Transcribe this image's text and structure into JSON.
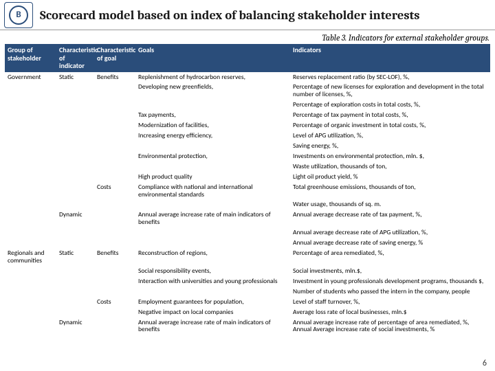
{
  "title": "Scorecard model based on index of balancing stakeholder interests",
  "caption": "Table 3. Indicators for external stakeholder groups.",
  "logo_letter": "B",
  "page_number": "6",
  "colors": {
    "header_bg": "#2a4d7a",
    "header_fg": "#ffffff",
    "border": "#999999",
    "text": "#000000"
  },
  "columns": [
    "Group of stakeholder",
    "Characteristic of indicator",
    "Characteristic of goal",
    "Goals",
    "Indicators"
  ],
  "rows": [
    {
      "c0": "Government",
      "c1": "Static",
      "c2": "Benefits",
      "c3": "Replenishment of hydrocarbon reserves,",
      "c4": "Reserves replacement ratio (by SEC-LOF), %,"
    },
    {
      "c0": "",
      "c1": "",
      "c2": "",
      "c3": "Developing new greenfields,",
      "c4": "Percentage of new licenses for exploration and development in the total number of licenses, %,"
    },
    {
      "c0": "",
      "c1": "",
      "c2": "",
      "c3": "",
      "c4": "Percentage of exploration costs in total costs, %,"
    },
    {
      "c0": "",
      "c1": "",
      "c2": "",
      "c3": "Tax payments,",
      "c4": "Percentage of tax payment in total costs, %,"
    },
    {
      "c0": "",
      "c1": "",
      "c2": "",
      "c3": "Modernization of facilities,",
      "c4": "Percentage of  organic investment in total costs, %,"
    },
    {
      "c0": "",
      "c1": "",
      "c2": "",
      "c3": "Increasing energy efficiency,",
      "c4": "Level of APG utilization, %,"
    },
    {
      "c0": "",
      "c1": "",
      "c2": "",
      "c3": "",
      "c4": "Saving energy, %,"
    },
    {
      "c0": "",
      "c1": "",
      "c2": "",
      "c3": "Environmental  protection,",
      "c4": "Investments on environmental protection, mln. $,"
    },
    {
      "c0": "",
      "c1": "",
      "c2": "",
      "c3": "",
      "c4": "Waste utilization, thousands of ton,"
    },
    {
      "c0": "",
      "c1": "",
      "c2": "",
      "c3": " High product quality",
      "c4": "Light oil product yield, %"
    },
    {
      "c0": "",
      "c1": "",
      "c2": "Costs",
      "c3": "Compliance with national and international environmental standards",
      "c4": "Total greenhouse emissions, thousands of ton,"
    },
    {
      "c0": "",
      "c1": "",
      "c2": "",
      "c3": "",
      "c4": "Water usage, thousands of sq. m."
    },
    {
      "c0": "",
      "c1": "Dynamic",
      "c2": "",
      "c3": "Annual average increase rate of main indicators of benefits",
      "c4": "Annual average decrease rate of tax payment, %,"
    },
    {
      "c0": "",
      "c1": "",
      "c2": "",
      "c3": "",
      "c4": "Annual average decrease rate of APG utilization, %,"
    },
    {
      "c0": "",
      "c1": "",
      "c2": "",
      "c3": "",
      "c4": "Annual average decrease rate of saving energy, %"
    },
    {
      "c0": "Regionals and communities",
      "c1": "Static",
      "c2": "Benefits",
      "c3": "Reconstruction of regions,",
      "c4": "Percentage of area remediated, %,"
    },
    {
      "c0": "",
      "c1": "",
      "c2": "",
      "c3": "Social responsibility events,",
      "c4": "Social investments, mln.$,"
    },
    {
      "c0": "",
      "c1": "",
      "c2": "",
      "c3": "Interaction with universities and young professionals",
      "c4": "Investment in young professionals development programs, thousands $,"
    },
    {
      "c0": "",
      "c1": "",
      "c2": "",
      "c3": "",
      "c4": "Number of students who passed the intern in the company, people"
    },
    {
      "c0": "",
      "c1": "",
      "c2": "Costs",
      "c3": "Employment guarantees for population,",
      "c4": "Level of staff turnover, %,"
    },
    {
      "c0": "",
      "c1": "",
      "c2": "",
      "c3": "Negative impact on local companies",
      "c4": "Average loss rate of local businesses, mln.$"
    },
    {
      "c0": "",
      "c1": "Dynamic",
      "c2": "",
      "c3": "Annual average increase rate of main indicators of benefits",
      "c4": "Annual average increase rate of percentage of area remediated, %, Annual Average increase rate of social investments, %"
    }
  ]
}
